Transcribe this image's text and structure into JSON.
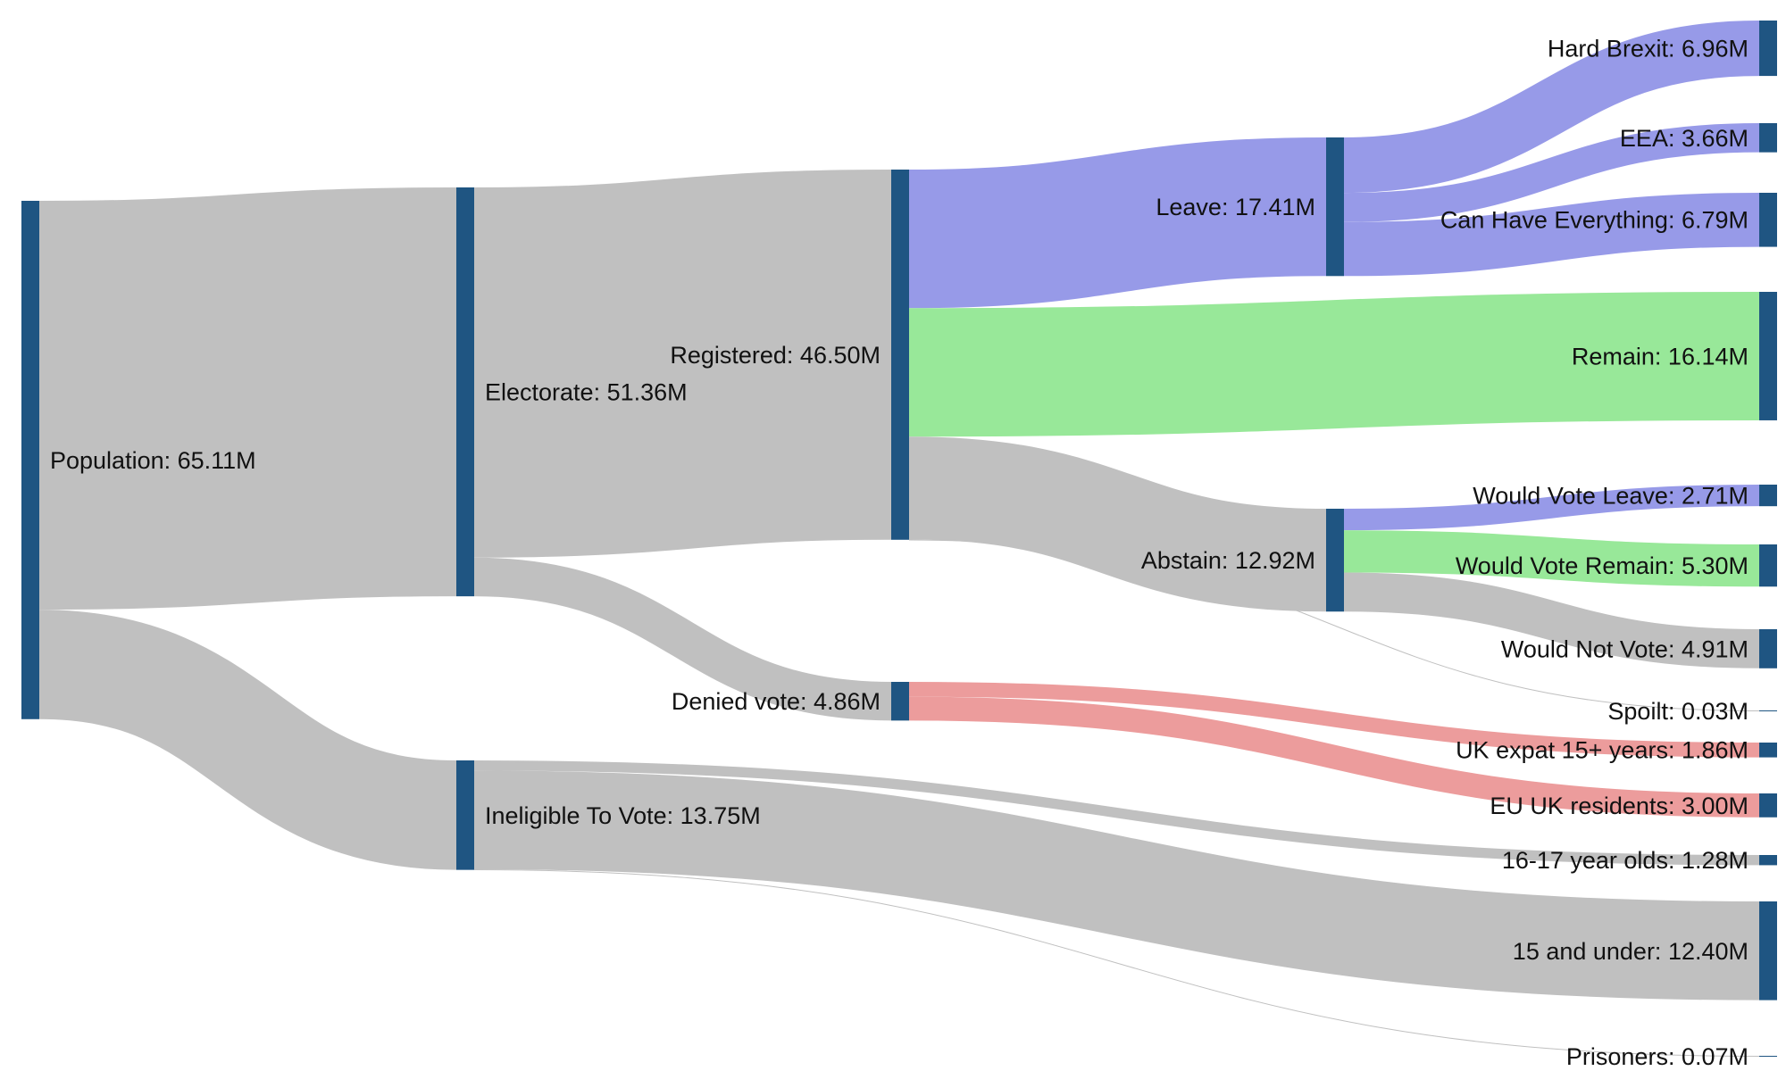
{
  "colors": {
    "node": "#1f5582",
    "neutral_link": "#c0c0c0",
    "leave_link": "#979ae8",
    "remain_link": "#98e899",
    "denied_link": "#ec9c9c"
  },
  "nodes": [
    {
      "id": "population",
      "label": "Population: 65.11M",
      "value": 65.11
    },
    {
      "id": "electorate",
      "label": "Electorate: 51.36M",
      "value": 51.36
    },
    {
      "id": "ineligible",
      "label": "Ineligible To Vote: 13.75M",
      "value": 13.75
    },
    {
      "id": "registered",
      "label": "Registered: 46.50M",
      "value": 46.5
    },
    {
      "id": "denied",
      "label": "Denied vote: 4.86M",
      "value": 4.86
    },
    {
      "id": "leave",
      "label": "Leave: 17.41M",
      "value": 17.41
    },
    {
      "id": "abstain",
      "label": "Abstain: 12.92M",
      "value": 12.92
    },
    {
      "id": "hard_brexit",
      "label": "Hard Brexit: 6.96M",
      "value": 6.96
    },
    {
      "id": "eea",
      "label": "EEA: 3.66M",
      "value": 3.66
    },
    {
      "id": "can_have",
      "label": "Can Have Everything: 6.79M",
      "value": 6.79
    },
    {
      "id": "remain",
      "label": "Remain: 16.14M",
      "value": 16.14
    },
    {
      "id": "would_leave",
      "label": "Would Vote Leave: 2.71M",
      "value": 2.71
    },
    {
      "id": "would_remain",
      "label": "Would Vote Remain: 5.30M",
      "value": 5.3
    },
    {
      "id": "would_not",
      "label": "Would Not Vote: 4.91M",
      "value": 4.91
    },
    {
      "id": "spoilt",
      "label": "Spoilt: 0.03M",
      "value": 0.03
    },
    {
      "id": "uk_expat",
      "label": "UK expat 15+ years: 1.86M",
      "value": 1.86
    },
    {
      "id": "eu_residents",
      "label": "EU UK residents: 3.00M",
      "value": 3.0
    },
    {
      "id": "teens",
      "label": "16-17 year olds: 1.28M",
      "value": 1.28
    },
    {
      "id": "under15",
      "label": "15 and under: 12.40M",
      "value": 12.4
    },
    {
      "id": "prisoners",
      "label": "Prisoners: 0.07M",
      "value": 0.07
    }
  ],
  "links": [
    {
      "source": "population",
      "target": "electorate",
      "value": 51.36,
      "color": "neutral_link"
    },
    {
      "source": "population",
      "target": "ineligible",
      "value": 13.75,
      "color": "neutral_link"
    },
    {
      "source": "electorate",
      "target": "registered",
      "value": 46.5,
      "color": "neutral_link"
    },
    {
      "source": "electorate",
      "target": "denied",
      "value": 4.86,
      "color": "neutral_link"
    },
    {
      "source": "registered",
      "target": "leave",
      "value": 17.41,
      "color": "leave_link"
    },
    {
      "source": "registered",
      "target": "remain",
      "value": 16.14,
      "color": "remain_link"
    },
    {
      "source": "registered",
      "target": "abstain",
      "value": 12.92,
      "color": "neutral_link"
    },
    {
      "source": "registered",
      "target": "spoilt",
      "value": 0.03,
      "color": "neutral_link"
    },
    {
      "source": "denied",
      "target": "uk_expat",
      "value": 1.86,
      "color": "denied_link"
    },
    {
      "source": "denied",
      "target": "eu_residents",
      "value": 3.0,
      "color": "denied_link"
    },
    {
      "source": "leave",
      "target": "hard_brexit",
      "value": 6.96,
      "color": "leave_link"
    },
    {
      "source": "leave",
      "target": "eea",
      "value": 3.66,
      "color": "leave_link"
    },
    {
      "source": "leave",
      "target": "can_have",
      "value": 6.79,
      "color": "leave_link"
    },
    {
      "source": "abstain",
      "target": "would_leave",
      "value": 2.71,
      "color": "leave_link"
    },
    {
      "source": "abstain",
      "target": "would_remain",
      "value": 5.3,
      "color": "remain_link"
    },
    {
      "source": "abstain",
      "target": "would_not",
      "value": 4.91,
      "color": "neutral_link"
    },
    {
      "source": "ineligible",
      "target": "teens",
      "value": 1.28,
      "color": "neutral_link"
    },
    {
      "source": "ineligible",
      "target": "under15",
      "value": 12.4,
      "color": "neutral_link"
    },
    {
      "source": "ineligible",
      "target": "prisoners",
      "value": 0.07,
      "color": "neutral_link"
    }
  ]
}
